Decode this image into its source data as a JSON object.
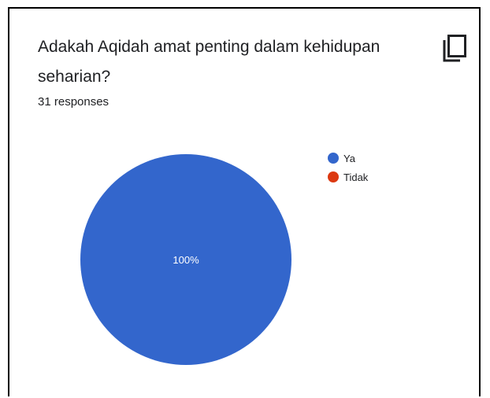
{
  "question": {
    "title": "Adakah Aqidah amat penting dalam kehidupan seharian?",
    "copy_icon": "copy-icon"
  },
  "responses": {
    "label": "31 responses"
  },
  "chart_data": {
    "type": "pie",
    "categories": [
      "Ya",
      "Tidak"
    ],
    "values": [
      100,
      0
    ],
    "colors": [
      "#3366cc",
      "#dc3912"
    ],
    "slice_labels": [
      "100%",
      ""
    ],
    "legend_position": "right"
  }
}
